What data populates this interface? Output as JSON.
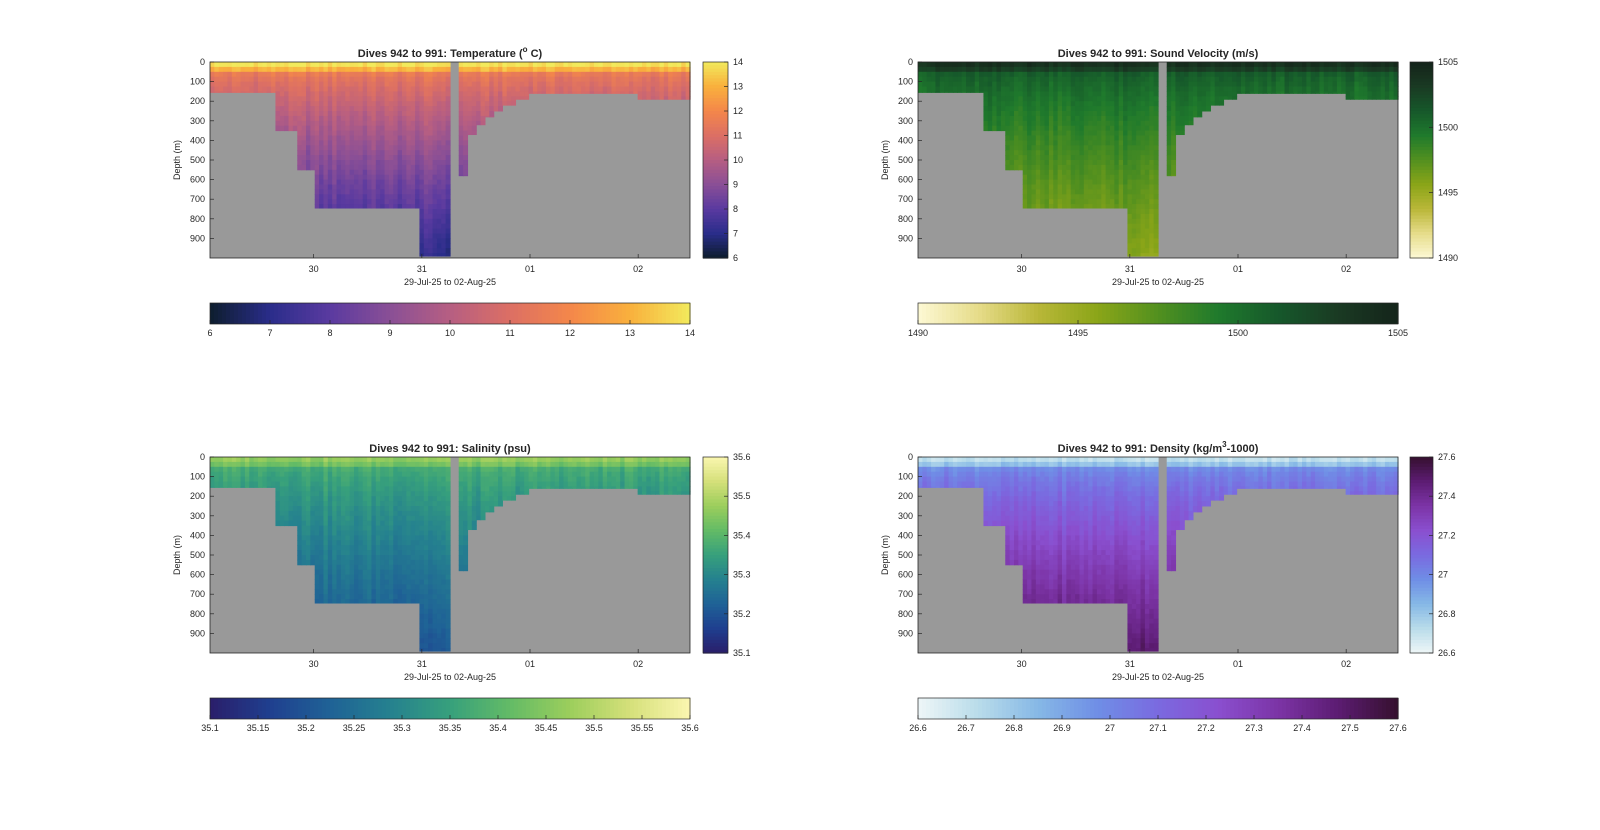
{
  "figure": {
    "background": "#ffffff",
    "land_color": "#999999"
  },
  "chart_data": [
    {
      "type": "heatmap",
      "id": "temperature",
      "title": "Dives 942 to 991: Temperature (° C)",
      "title_prefix": "Dives 942 to 991: Temperature (",
      "title_sup": "o",
      "title_suffix": " C)",
      "xlabel": "29-Jul-25 to 02-Aug-25",
      "ylabel": "Depth (m)",
      "xlim": [
        "2025-07-29T01:00",
        "2025-08-02T11:30"
      ],
      "x_ticks": [
        "2025-07-30",
        "2025-07-31",
        "2025-08-01",
        "2025-08-02"
      ],
      "x_tick_labels": [
        "30",
        "31",
        "01",
        "02"
      ],
      "ylim": [
        0,
        1000
      ],
      "y_reversed": true,
      "y_ticks": [
        0,
        100,
        200,
        300,
        400,
        500,
        600,
        700,
        800,
        900
      ],
      "y_tick_labels": [
        "0",
        "100",
        "200",
        "300",
        "400",
        "500",
        "600",
        "700",
        "800",
        "900"
      ],
      "clim": [
        6,
        14
      ],
      "colormap": [
        "#0d1d2e",
        "#2a2d8a",
        "#5a3aa0",
        "#8a4f96",
        "#b65e82",
        "#dc6f64",
        "#f4874a",
        "#f9b03d",
        "#f2ea5c"
      ],
      "colorbar_ticks": [
        6,
        7,
        8,
        9,
        10,
        11,
        12,
        13,
        14
      ],
      "colorbar_tick_labels": [
        "6",
        "7",
        "8",
        "9",
        "10",
        "11",
        "12",
        "13",
        "14"
      ],
      "horizontal_colorbar_ticks": [
        6,
        7,
        8,
        9,
        10,
        11,
        12,
        13,
        14
      ],
      "horizontal_colorbar_tick_labels": [
        "6",
        "7",
        "8",
        "9",
        "10",
        "11",
        "12",
        "13",
        "14"
      ],
      "profile": {
        "surface": 14.0,
        "thermocline_depth": 60,
        "deep_depth": 1000,
        "deep_value": 7.0
      }
    },
    {
      "type": "heatmap",
      "id": "sound_velocity",
      "title": "Dives 942 to 991: Sound Velocity (m/s)",
      "title_prefix": "Dives 942 to 991: Sound Velocity (m/s)",
      "title_sup": "",
      "title_suffix": "",
      "xlabel": "29-Jul-25 to 02-Aug-25",
      "ylabel": "Depth (m)",
      "xlim": [
        "2025-07-29T01:00",
        "2025-08-02T11:30"
      ],
      "x_ticks": [
        "2025-07-30",
        "2025-07-31",
        "2025-08-01",
        "2025-08-02"
      ],
      "x_tick_labels": [
        "30",
        "31",
        "01",
        "02"
      ],
      "ylim": [
        0,
        1000
      ],
      "y_reversed": true,
      "y_ticks": [
        0,
        100,
        200,
        300,
        400,
        500,
        600,
        700,
        800,
        900
      ],
      "y_tick_labels": [
        "0",
        "100",
        "200",
        "300",
        "400",
        "500",
        "600",
        "700",
        "800",
        "900"
      ],
      "clim": [
        1490,
        1505
      ],
      "colormap": [
        "#fdf9d4",
        "#e6dc8a",
        "#b9b738",
        "#8aa518",
        "#52901f",
        "#1f7a2c",
        "#16582b",
        "#1a3a23",
        "#14241a"
      ],
      "colorbar_ticks": [
        1490,
        1495,
        1500,
        1505
      ],
      "colorbar_tick_labels": [
        "1490",
        "1495",
        "1500",
        "1505"
      ],
      "horizontal_colorbar_ticks": [
        1490,
        1495,
        1500,
        1505
      ],
      "horizontal_colorbar_tick_labels": [
        "1490",
        "1495",
        "1500",
        "1505"
      ],
      "profile": {
        "surface": 1504.0,
        "thermocline_depth": 60,
        "deep_depth": 1000,
        "deep_value": 1495.5
      }
    },
    {
      "type": "heatmap",
      "id": "salinity",
      "title": "Dives 942 to 991: Salinity (psu)",
      "title_prefix": "Dives 942 to 991: Salinity (psu)",
      "title_sup": "",
      "title_suffix": "",
      "xlabel": "29-Jul-25 to 02-Aug-25",
      "ylabel": "Depth (m)",
      "xlim": [
        "2025-07-29T01:00",
        "2025-08-02T11:30"
      ],
      "x_ticks": [
        "2025-07-30",
        "2025-07-31",
        "2025-08-01",
        "2025-08-02"
      ],
      "x_tick_labels": [
        "30",
        "31",
        "01",
        "02"
      ],
      "ylim": [
        0,
        1000
      ],
      "y_reversed": true,
      "y_ticks": [
        0,
        100,
        200,
        300,
        400,
        500,
        600,
        700,
        800,
        900
      ],
      "y_tick_labels": [
        "0",
        "100",
        "200",
        "300",
        "400",
        "500",
        "600",
        "700",
        "800",
        "900"
      ],
      "clim": [
        35.1,
        35.6
      ],
      "colormap": [
        "#2a1e6a",
        "#1f3f8f",
        "#1f6296",
        "#25818f",
        "#37a07c",
        "#63bb66",
        "#9cce5c",
        "#d5e07a",
        "#fbf6b0"
      ],
      "colorbar_ticks": [
        35.1,
        35.2,
        35.3,
        35.4,
        35.5,
        35.6
      ],
      "colorbar_tick_labels": [
        "35.1",
        "35.2",
        "35.3",
        "35.4",
        "35.5",
        "35.6"
      ],
      "horizontal_colorbar_ticks": [
        35.1,
        35.15,
        35.2,
        35.25,
        35.3,
        35.35,
        35.4,
        35.45,
        35.5,
        35.55,
        35.6
      ],
      "horizontal_colorbar_tick_labels": [
        "35.1",
        "35.15",
        "35.2",
        "35.25",
        "35.3",
        "35.35",
        "35.4",
        "35.45",
        "35.5",
        "35.55",
        "35.6"
      ],
      "profile": {
        "surface": 35.47,
        "thermocline_depth": 60,
        "deep_depth": 1000,
        "deep_value": 35.2
      }
    },
    {
      "type": "heatmap",
      "id": "density",
      "title": "Dives 942 to 991: Density (kg/m³-1000)",
      "title_prefix": "Dives 942 to 991: Density (kg/m",
      "title_sup": "3",
      "title_suffix": "-1000)",
      "xlabel": "29-Jul-25 to 02-Aug-25",
      "ylabel": "Depth (m)",
      "xlim": [
        "2025-07-29T01:00",
        "2025-08-02T11:30"
      ],
      "x_ticks": [
        "2025-07-30",
        "2025-07-31",
        "2025-08-01",
        "2025-08-02"
      ],
      "x_tick_labels": [
        "30",
        "31",
        "01",
        "02"
      ],
      "ylim": [
        0,
        1000
      ],
      "y_reversed": true,
      "y_ticks": [
        0,
        100,
        200,
        300,
        400,
        500,
        600,
        700,
        800,
        900
      ],
      "y_tick_labels": [
        "0",
        "100",
        "200",
        "300",
        "400",
        "500",
        "600",
        "700",
        "800",
        "900"
      ],
      "clim": [
        26.6,
        27.6
      ],
      "colormap": [
        "#eef6f7",
        "#b9dcea",
        "#86b8e6",
        "#6f8ee6",
        "#7a6ae0",
        "#8a4fcf",
        "#7c34a6",
        "#5c1c72",
        "#35102e"
      ],
      "colorbar_ticks": [
        26.6,
        26.8,
        27.0,
        27.2,
        27.4,
        27.6
      ],
      "colorbar_tick_labels": [
        "26.6",
        "26.8",
        "27",
        "27.2",
        "27.4",
        "27.6"
      ],
      "horizontal_colorbar_ticks": [
        26.6,
        26.7,
        26.8,
        26.9,
        27.0,
        27.1,
        27.2,
        27.3,
        27.4,
        27.5,
        27.6
      ],
      "horizontal_colorbar_tick_labels": [
        "26.6",
        "26.7",
        "26.8",
        "26.9",
        "27",
        "27.1",
        "27.2",
        "27.3",
        "27.4",
        "27.5",
        "27.6"
      ],
      "profile": {
        "surface": 26.7,
        "thermocline_depth": 60,
        "deep_depth": 1000,
        "deep_value": 27.5
      }
    }
  ],
  "dive_max_depth": {
    "description_units": "meters; maximum dive depth per time segment (deeper = land/seafloor shown gray below)",
    "segments": [
      {
        "start": "2025-07-29T01:00",
        "end": "2025-07-29T16:00",
        "depth": 155
      },
      {
        "start": "2025-07-29T16:00",
        "end": "2025-07-29T20:30",
        "depth": 350
      },
      {
        "start": "2025-07-29T20:30",
        "end": "2025-07-30T00:30",
        "depth": 550
      },
      {
        "start": "2025-07-30T00:30",
        "end": "2025-07-30T23:30",
        "depth": 745
      },
      {
        "start": "2025-07-30T23:30",
        "end": "2025-07-31T06:30",
        "depth": 990
      },
      {
        "start": "2025-07-31T06:30",
        "end": "2025-07-31T08:30",
        "depth": 0
      },
      {
        "start": "2025-07-31T08:30",
        "end": "2025-07-31T10:30",
        "depth": 580
      },
      {
        "start": "2025-07-31T10:30",
        "end": "2025-07-31T12:30",
        "depth": 370
      },
      {
        "start": "2025-07-31T12:30",
        "end": "2025-07-31T14:00",
        "depth": 320
      },
      {
        "start": "2025-07-31T14:00",
        "end": "2025-07-31T16:00",
        "depth": 280
      },
      {
        "start": "2025-07-31T16:00",
        "end": "2025-07-31T18:00",
        "depth": 250
      },
      {
        "start": "2025-07-31T18:00",
        "end": "2025-07-31T21:00",
        "depth": 220
      },
      {
        "start": "2025-07-31T21:00",
        "end": "2025-08-01T00:00",
        "depth": 190
      },
      {
        "start": "2025-08-01T00:00",
        "end": "2025-08-02T00:00",
        "depth": 160
      },
      {
        "start": "2025-08-02T00:00",
        "end": "2025-08-02T11:30",
        "depth": 190
      }
    ]
  }
}
